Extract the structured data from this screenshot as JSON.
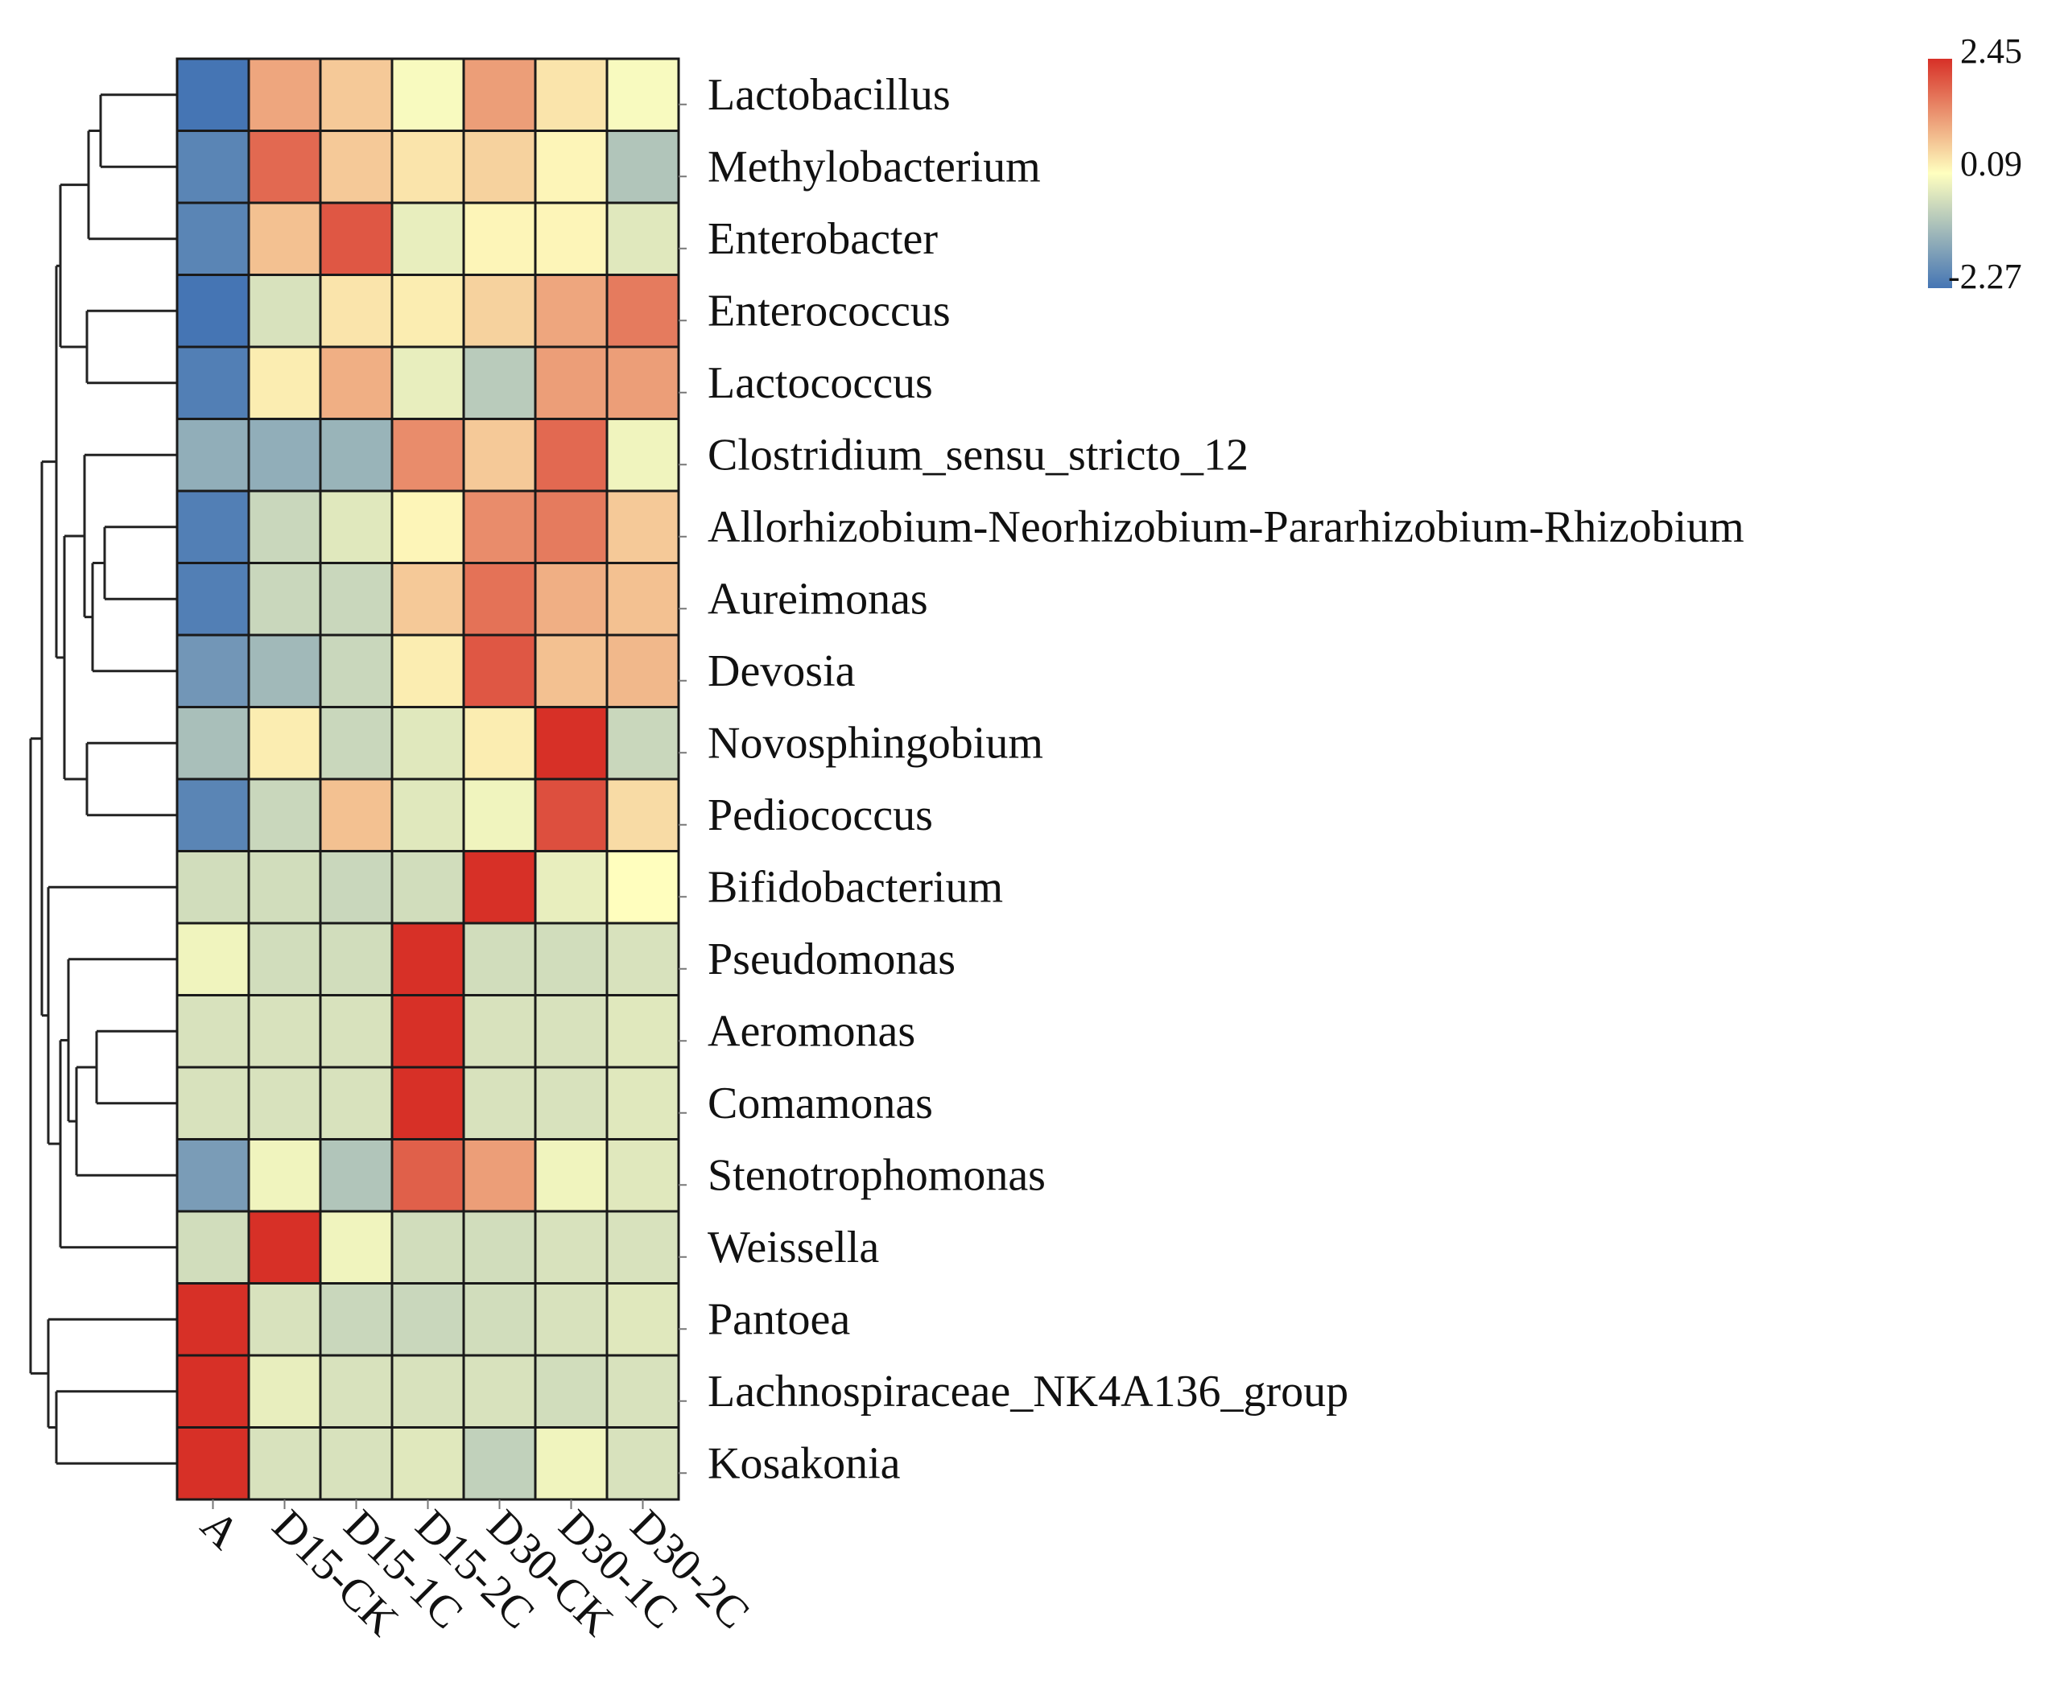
{
  "chart_data": {
    "type": "heatmap",
    "title": "",
    "columns": [
      "A",
      "D15-CK",
      "D15-1C",
      "D15-2C",
      "D30-CK",
      "D30-1C",
      "D30-2C"
    ],
    "rows": [
      "Lactobacillus",
      "Methylobacterium",
      "Enterobacter",
      "Enterococcus",
      "Lactococcus",
      "Clostridium_sensu_stricto_12",
      "Allorhizobium-Neorhizobium-Pararhizobium-Rhizobium",
      "Aureimonas",
      "Devosia",
      "Novosphingobium",
      "Pediococcus",
      "Bifidobacterium",
      "Pseudomonas",
      "Aeromonas",
      "Comamonas",
      "Stenotrophomonas",
      "Weissella",
      "Pantoea",
      "Lachnospiraceae_NK4A136_group",
      "Kosakonia"
    ],
    "values": [
      [
        -2.27,
        1.1,
        0.7,
        0.0,
        1.2,
        0.4,
        0.0
      ],
      [
        -2.0,
        1.8,
        0.7,
        0.4,
        0.6,
        0.2,
        -0.9
      ],
      [
        -2.0,
        0.8,
        2.0,
        -0.2,
        0.2,
        0.2,
        -0.3
      ],
      [
        -2.27,
        -0.4,
        0.4,
        0.3,
        0.6,
        1.1,
        1.6
      ],
      [
        -2.1,
        0.3,
        1.0,
        -0.2,
        -0.8,
        1.2,
        1.2
      ],
      [
        -1.3,
        -1.3,
        -1.2,
        1.4,
        0.7,
        1.8,
        -0.1
      ],
      [
        -2.1,
        -0.6,
        -0.3,
        0.2,
        1.4,
        1.6,
        0.7
      ],
      [
        -2.1,
        -0.6,
        -0.6,
        0.7,
        1.7,
        1.0,
        0.8
      ],
      [
        -1.7,
        -1.1,
        -0.6,
        0.3,
        2.0,
        0.8,
        0.9
      ],
      [
        -1.0,
        0.3,
        -0.6,
        -0.3,
        0.3,
        2.45,
        -0.6
      ],
      [
        -2.0,
        -0.6,
        0.8,
        -0.3,
        -0.1,
        2.1,
        0.5
      ],
      [
        -0.5,
        -0.5,
        -0.6,
        -0.5,
        2.45,
        -0.2,
        0.1
      ],
      [
        -0.1,
        -0.5,
        -0.5,
        2.45,
        -0.5,
        -0.5,
        -0.4
      ],
      [
        -0.4,
        -0.4,
        -0.4,
        2.45,
        -0.4,
        -0.4,
        -0.3
      ],
      [
        -0.4,
        -0.4,
        -0.4,
        2.45,
        -0.4,
        -0.4,
        -0.3
      ],
      [
        -1.6,
        -0.1,
        -0.9,
        1.9,
        1.2,
        -0.1,
        -0.3
      ],
      [
        -0.5,
        2.45,
        -0.1,
        -0.5,
        -0.5,
        -0.4,
        -0.4
      ],
      [
        2.45,
        -0.4,
        -0.6,
        -0.6,
        -0.5,
        -0.4,
        -0.3
      ],
      [
        2.45,
        -0.2,
        -0.4,
        -0.4,
        -0.4,
        -0.5,
        -0.4
      ],
      [
        2.45,
        -0.4,
        -0.4,
        -0.3,
        -0.7,
        -0.1,
        -0.4
      ]
    ],
    "color_scale": {
      "min": -2.27,
      "mid": 0.09,
      "max": 2.45,
      "min_color": "#4575b4",
      "mid_color": "#ffffbf",
      "max_color": "#d73027",
      "tick_labels": [
        "2.45",
        "0.09",
        "-2.27"
      ]
    },
    "dendrogram": "row-clustered",
    "xlabel": "",
    "ylabel": ""
  }
}
